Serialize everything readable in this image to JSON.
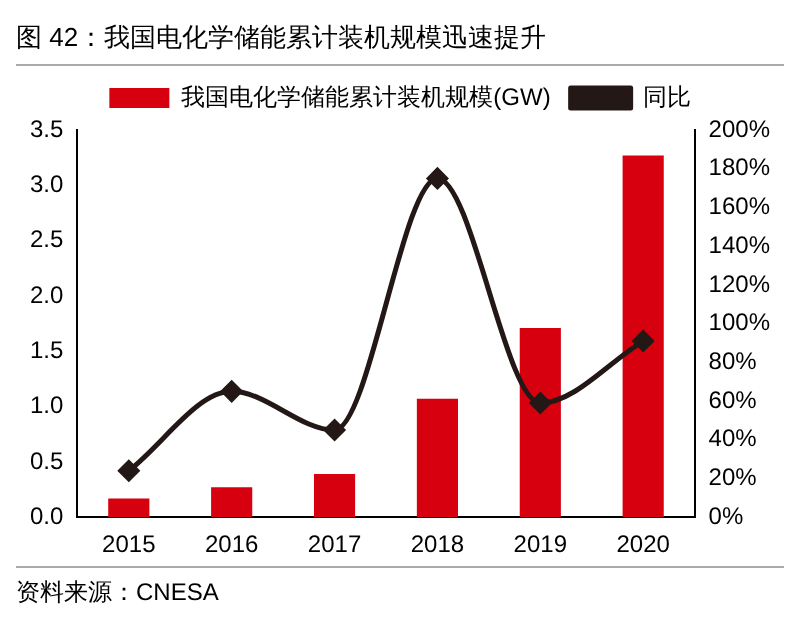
{
  "chart_data": {
    "type": "bar",
    "title": "图 42：我国电化学储能累计装机规模迅速提升",
    "annotations": [
      "资料来源：CNESA"
    ],
    "categories": [
      "2015",
      "2016",
      "2017",
      "2018",
      "2019",
      "2020"
    ],
    "series": [
      {
        "name": "我国电化学储能累计装机规模(GW)",
        "color": "#d7000f",
        "values": [
          0.17,
          0.27,
          0.39,
          1.07,
          1.71,
          3.27
        ]
      },
      {
        "name": "同比",
        "type": "line",
        "axis": "y2",
        "color": "#231815",
        "marker": "diamond",
        "values": [
          24,
          65,
          45,
          175,
          59,
          91
        ]
      }
    ],
    "ylim": [
      0,
      3.5
    ],
    "yticks": [
      {
        "value": 0,
        "label": "0.0"
      },
      0.5,
      {
        "value": 1,
        "label": "1.0"
      },
      1.5,
      {
        "value": 2,
        "label": "2.0"
      },
      2.5,
      {
        "value": 3,
        "label": "3.0"
      },
      3.5
    ],
    "y2lim": [
      0,
      200
    ],
    "y2ticks": [
      {
        "value": 0,
        "label": "0%"
      },
      {
        "value": 20,
        "label": "20%"
      },
      {
        "value": 40,
        "label": "40%"
      },
      {
        "value": 60,
        "label": "60%"
      },
      {
        "value": 80,
        "label": "80%"
      },
      {
        "value": 100,
        "label": "100%"
      },
      {
        "value": 120,
        "label": "120%"
      },
      {
        "value": 140,
        "label": "140%"
      },
      {
        "value": 160,
        "label": "160%"
      },
      {
        "value": 180,
        "label": "180%"
      },
      {
        "value": 200,
        "label": "200%"
      }
    ],
    "grid": false,
    "legend": "top"
  }
}
